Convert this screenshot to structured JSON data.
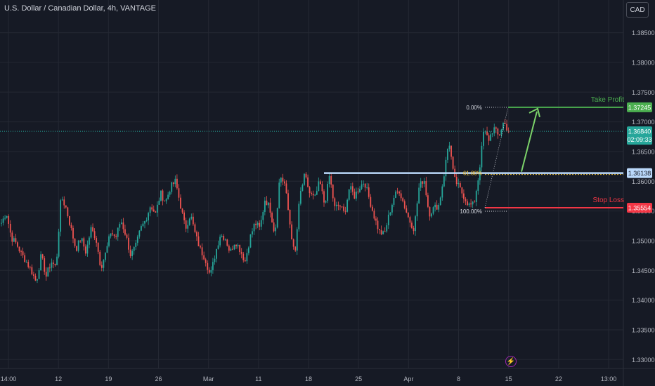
{
  "header": {
    "title": "U.S. Dollar / Canadian Dollar, 4h, VANTAGE",
    "currency_button": "CAD"
  },
  "colors": {
    "bg": "#161a25",
    "grid": "#242833",
    "up": "#26a69a",
    "down": "#ef5350",
    "take_profit": "#4caf50",
    "stop_loss": "#f23645",
    "support": "#bbd9fb",
    "fib": "#9598a1"
  },
  "chart_data": {
    "type": "candlestick",
    "symbol": "USDCAD",
    "timeframe": "4h",
    "ylim": [
      1.3285,
      1.3905
    ],
    "y_ticks": [
      "1.38500",
      "1.38000",
      "1.37500",
      "1.37000",
      "1.36500",
      "1.36000",
      "1.35500",
      "1.35000",
      "1.34500",
      "1.34000",
      "1.33500",
      "1.33000"
    ],
    "x_ticks": [
      "14:00",
      "12",
      "19",
      "26",
      "Mar",
      "11",
      "18",
      "25",
      "Apr",
      "8",
      "15",
      "22",
      "13:00"
    ],
    "price_path": [
      1.353,
      1.3548,
      1.3505,
      1.3495,
      1.3478,
      1.3465,
      1.345,
      1.343,
      1.3475,
      1.344,
      1.3465,
      1.3455,
      1.3575,
      1.3555,
      1.352,
      1.3485,
      1.3505,
      1.348,
      1.352,
      1.3505,
      1.3455,
      1.348,
      1.3515,
      1.3505,
      1.3535,
      1.351,
      1.3475,
      1.349,
      1.352,
      1.3535,
      1.356,
      1.3545,
      1.358,
      1.3565,
      1.359,
      1.36,
      1.356,
      1.352,
      1.3545,
      1.351,
      1.3485,
      1.347,
      1.344,
      1.3478,
      1.351,
      1.3505,
      1.348,
      1.35,
      1.3485,
      1.3465,
      1.3505,
      1.353,
      1.352,
      1.357,
      1.3555,
      1.351,
      1.361,
      1.3595,
      1.353,
      1.347,
      1.3575,
      1.361,
      1.358,
      1.357,
      1.36,
      1.356,
      1.361,
      1.3555,
      1.356,
      1.3545,
      1.359,
      1.3575,
      1.359,
      1.36,
      1.357,
      1.354,
      1.3515,
      1.351,
      1.3545,
      1.3575,
      1.3585,
      1.356,
      1.3535,
      1.352,
      1.359,
      1.3605,
      1.3545,
      1.3555,
      1.356,
      1.361,
      1.367,
      1.3605,
      1.359,
      1.3575,
      1.356,
      1.356,
      1.361,
      1.3685,
      1.367,
      1.369,
      1.3675,
      1.37,
      1.3684
    ],
    "current_price": {
      "value": "1.36840",
      "countdown": "02:09:33"
    },
    "levels": {
      "take_profit": {
        "label": "Take Profit",
        "price": "1.37245",
        "value": 1.37245
      },
      "support": {
        "price": "1.36138",
        "value": 1.36138
      },
      "stop_loss": {
        "label": "Stop Loss",
        "price": "1.35554",
        "value": 1.35554
      }
    },
    "fib": [
      {
        "label": "0.00%",
        "value": 1.37245
      },
      {
        "label": "61.80%",
        "value": 1.36138
      },
      {
        "label": "100.00%",
        "value": 1.35554
      }
    ]
  }
}
